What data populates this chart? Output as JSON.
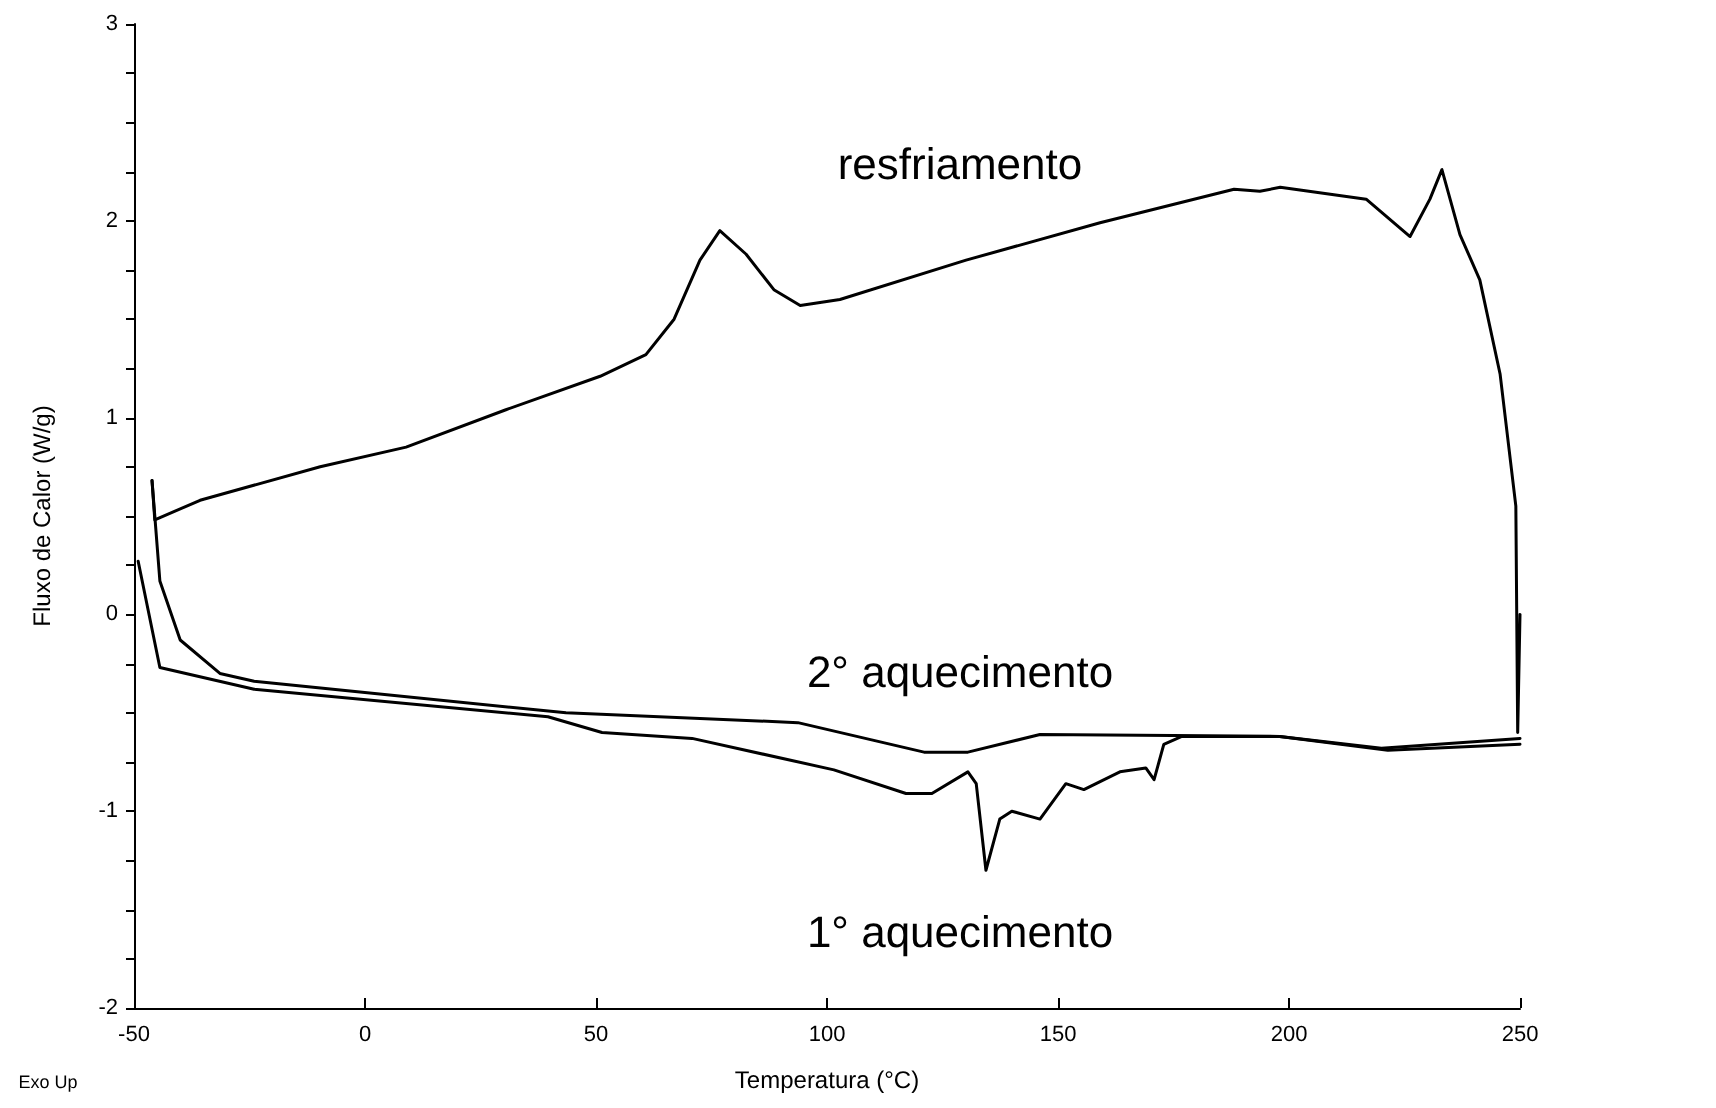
{
  "chart_data": {
    "type": "line",
    "xlabel": "Temperatura (°C)",
    "ylabel": "Fluxo de Calor (W/g)",
    "xlim": [
      -50,
      250
    ],
    "xticks": [
      -50,
      0,
      50,
      100,
      150,
      200,
      250
    ],
    "ylim": [
      -2,
      3
    ],
    "yticks": [
      -2,
      {
        "value": -1.75,
        "label": null
      },
      {
        "value": -1.5,
        "label": null
      },
      {
        "value": -1.25,
        "label": null
      },
      -1,
      {
        "value": -0.75,
        "label": null
      },
      {
        "value": -0.5,
        "label": null
      },
      {
        "value": -0.25,
        "label": null
      },
      0,
      {
        "value": 0.25,
        "label": null
      },
      {
        "value": 0.5,
        "label": null
      },
      {
        "value": 0.75,
        "label": null
      },
      1,
      {
        "value": 1.25,
        "label": null
      },
      {
        "value": 1.5,
        "label": null
      },
      {
        "value": 1.75,
        "label": null
      },
      2,
      {
        "value": 2.25,
        "label": null
      },
      {
        "value": 2.5,
        "label": null
      },
      {
        "value": 2.75,
        "label": null
      },
      3
    ],
    "grid": false,
    "marker": "none",
    "line_style": "solid",
    "series": [
      {
        "color": "#000000",
        "x": [
          250,
          249.5,
          249.1,
          245.7,
          241.3,
          237,
          233.1,
          230.5,
          226.2,
          216.7,
          198.1,
          193.7,
          188.1,
          159.1,
          130.1,
          102.8,
          94.2,
          88.5,
          82.5,
          76.8,
          72.5,
          66.9,
          60.8,
          50.9,
          30.5,
          8.9,
          -9.7,
          -35.7,
          -45.5,
          -46.1
        ],
        "values": [
          0,
          -0.6,
          0.55,
          1.22,
          1.7,
          1.93,
          2.26,
          2.11,
          1.92,
          2.11,
          2.17,
          2.15,
          2.16,
          1.99,
          1.8,
          1.6,
          1.57,
          1.65,
          1.83,
          1.95,
          1.8,
          1.5,
          1.32,
          1.21,
          1.04,
          0.85,
          0.75,
          0.58,
          0.48,
          0.68
        ]
      },
      {
        "color": "#000000",
        "x": [
          -46.1,
          -44.4,
          -40,
          -31.4,
          -24,
          43.5,
          93.7,
          121,
          130.5,
          146.1,
          198,
          220,
          250
        ],
        "values": [
          0.68,
          0.17,
          -0.13,
          -0.3,
          -0.34,
          -0.5,
          -0.55,
          -0.7,
          -0.7,
          -0.61,
          -0.62,
          -0.68,
          -0.63
        ]
      },
      {
        "color": "#000000",
        "x": [
          -49.1,
          -44.4,
          -24,
          39.6,
          51.3,
          70.8,
          101.5,
          117.1,
          122.7,
          130.5,
          132.3,
          134.4,
          137.4,
          140,
          146.1,
          151.7,
          155.6,
          163.4,
          169,
          170.8,
          172.9,
          176.8,
          198,
          221.4,
          250
        ],
        "values": [
          0.27,
          -0.27,
          -0.38,
          -0.52,
          -0.6,
          -0.63,
          -0.79,
          -0.91,
          -0.91,
          -0.8,
          -0.86,
          -1.3,
          -1.04,
          -1,
          -1.04,
          -0.86,
          -0.89,
          -0.8,
          -0.78,
          -0.84,
          -0.66,
          -0.62,
          -0.62,
          -0.69,
          -0.66
        ]
      }
    ],
    "annotations": [
      "resfriamento",
      "2° aquecimento",
      "1° aquecimento",
      "Exo Up"
    ]
  }
}
